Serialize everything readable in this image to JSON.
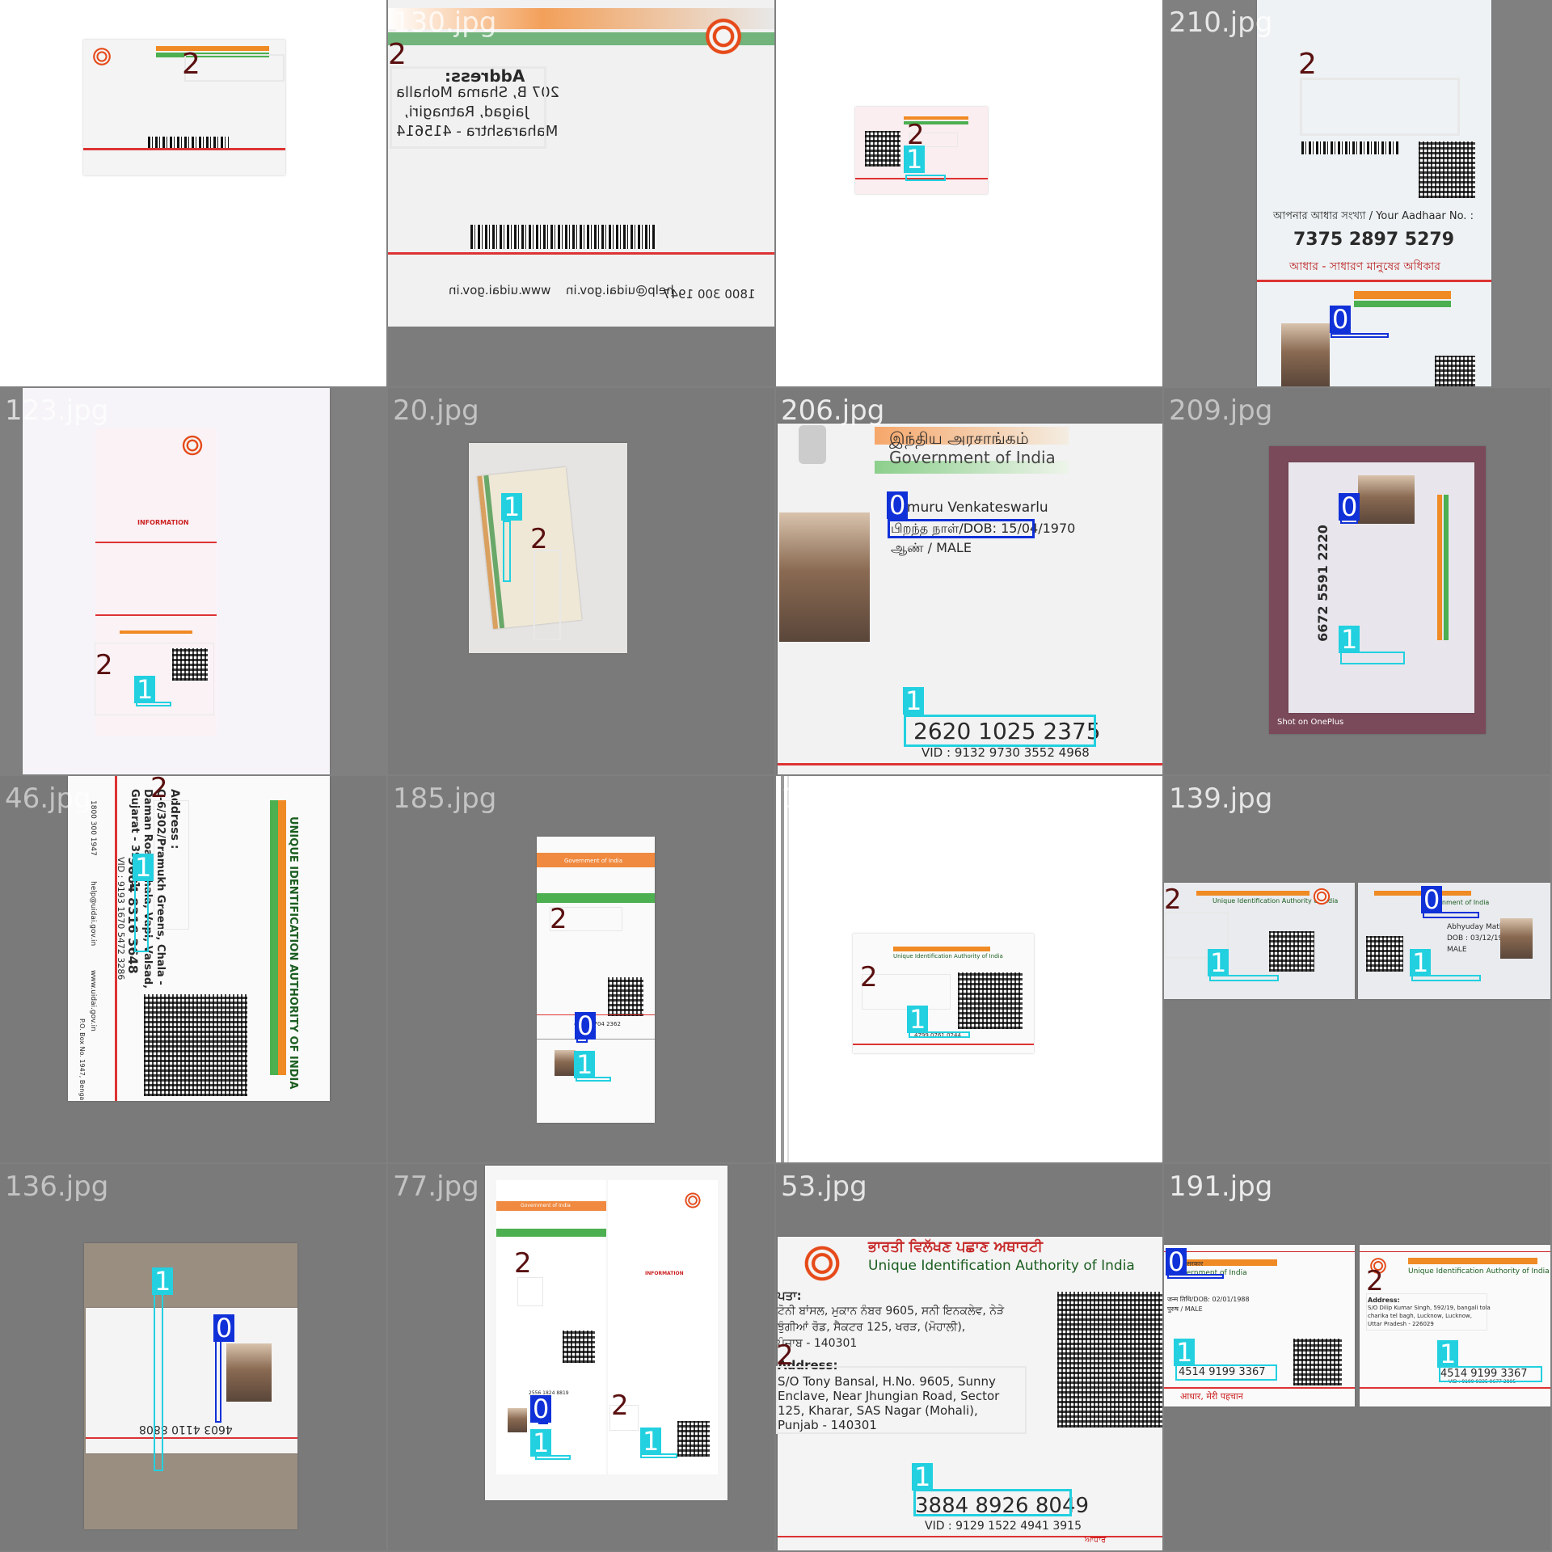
{
  "colors": {
    "class_0": "#1030d8",
    "class_1": "#22d0e0",
    "class_2": "#e8e8e8",
    "label_2_text": "#5a1010",
    "tile_background": "#7a7a7a"
  },
  "tiles": [
    {
      "file": "13.jpg",
      "detections": [
        {
          "cls": "2"
        }
      ]
    },
    {
      "file": "130.jpg",
      "detections": [
        {
          "cls": "2"
        }
      ],
      "card_text": [
        "Address:",
        "207 B, Shama Mohalla",
        "Jaigad, Ratnagiri,",
        "Maharashtra - 415614",
        "1800 300 1947",
        "help@uidai.gov.in",
        "www.uidai.gov.in"
      ]
    },
    {
      "file": "24.jpg",
      "detections": [
        {
          "cls": "2"
        },
        {
          "cls": "1"
        }
      ]
    },
    {
      "file": "210.jpg",
      "detections": [
        {
          "cls": "2"
        },
        {
          "cls": "0"
        }
      ],
      "card_text": [
        "আপনার আধার সংখ্যা / Your Aadhaar No. :",
        "7375 2897 5279",
        "আধার - সাধারণ মানুষের অধিকার"
      ]
    },
    {
      "file": "123.jpg",
      "detections": [
        {
          "cls": "2"
        },
        {
          "cls": "1"
        }
      ],
      "card_text": [
        "INFORMATION"
      ]
    },
    {
      "file": "20.jpg",
      "detections": [
        {
          "cls": "1"
        },
        {
          "cls": "2"
        }
      ]
    },
    {
      "file": "206.jpg",
      "detections": [
        {
          "cls": "0"
        },
        {
          "cls": "1"
        }
      ],
      "card_text": [
        "இந்திய அரசாங்கம்",
        "Government of India",
        "Pamuru Venkateswarlu",
        "பிறந்த நாள்/DOB: 15/04/1970",
        "ஆண் / MALE",
        "2620 1025 2375",
        "VID : 9132 9730 3552 4968"
      ]
    },
    {
      "file": "209.jpg",
      "detections": [
        {
          "cls": "0"
        },
        {
          "cls": "1"
        }
      ],
      "card_text": [
        "6672 5591 2220",
        "Shot on OnePlus"
      ]
    },
    {
      "file": "46.jpg",
      "detections": [
        {
          "cls": "2"
        },
        {
          "cls": "1"
        }
      ],
      "card_text": [
        "Address :",
        "C-6/302/Pramukh Greens, Chala -",
        "Daman Road, Chala, Vapi, Valsad,",
        "Gujarat - 396191",
        "9084 8316 3648",
        "VID : 9193 1670 5472 3286",
        "UNIQUE IDENTIFICATION AUTHORITY OF INDIA",
        "1800 300 1947",
        "help@uidai.gov.in",
        "www.uidai.gov.in",
        "P.O. Box No. 1947, Bengaluru-560 001"
      ]
    },
    {
      "file": "185.jpg",
      "detections": [
        {
          "cls": "2"
        },
        {
          "cls": "0"
        },
        {
          "cls": "1"
        }
      ],
      "card_text": [
        "Government of India",
        "4207 9704 2362"
      ]
    },
    {
      "file": "104.jpg",
      "detections": [
        {
          "cls": "2"
        },
        {
          "cls": "1"
        }
      ],
      "card_text": [
        "Unique Identification Authority of India",
        "4799 0761 0244"
      ]
    },
    {
      "file": "139.jpg",
      "detections": [
        {
          "cls": "2"
        },
        {
          "cls": "1"
        },
        {
          "cls": "0"
        },
        {
          "cls": "1"
        }
      ],
      "card_text": [
        "Unique Identification Authority of India",
        "Government of India",
        "Abhyuday Mathur",
        "DOB : 03/12/1990",
        "MALE"
      ]
    },
    {
      "file": "136.jpg",
      "detections": [
        {
          "cls": "1"
        },
        {
          "cls": "0"
        }
      ],
      "card_text": [
        "4603 4110 8808"
      ]
    },
    {
      "file": "77.jpg",
      "detections": [
        {
          "cls": "2"
        },
        {
          "cls": "0"
        },
        {
          "cls": "1"
        },
        {
          "cls": "2"
        },
        {
          "cls": "1"
        }
      ],
      "card_text": [
        "Government of India",
        "INFORMATION",
        "2556 1824 8819"
      ]
    },
    {
      "file": "53.jpg",
      "detections": [
        {
          "cls": "2"
        },
        {
          "cls": "1"
        }
      ],
      "card_text": [
        "ਭਾਰਤੀ ਵਿਲੱਖਣ ਪਛਾਣ ਅਥਾਰਟੀ",
        "Unique Identification Authority of India",
        "ਪਤਾ:",
        "ਟੋਨੀ ਬਾਂਸਲ, ਮੁਕਾਨ ਨੰਬਰ 9605, ਸਨੀ ਇਨਕਲੇਵ, ਨੇੜੇ",
        "ਝੁੰਗੀਆਂ ਰੋਡ, ਸੈਕਟਰ 125, ਖਰੜ, (ਮੋਹਾਲੀ),",
        "ਪੰਜਾਬ - 140301",
        "Address:",
        "S/O Tony Bansal, H.No. 9605, Sunny",
        "Enclave, Near Jhungian Road, Sector",
        "125, Kharar, SAS Nagar (Mohali),",
        "Punjab - 140301",
        "3884 8926 8049",
        "VID : 9129 1522 4941 3915",
        "ਆਧਾਰ"
      ]
    },
    {
      "file": "191.jpg",
      "detections": [
        {
          "cls": "0"
        },
        {
          "cls": "2"
        },
        {
          "cls": "1"
        },
        {
          "cls": "1"
        }
      ],
      "card_text": [
        "भारत सरकार",
        "Government of India",
        "जन्म तिथि/DOB: 02/01/1988",
        "पुरुष / MALE",
        "Unique Identification Authority of India",
        "Address:",
        "S/O Dilip Kumar Singh, 592/19, bangali tola",
        "charika tel bagh, Lucknow, Lucknow,",
        "Uttar Pradesh - 226029",
        "4514 9199 3367",
        "4514 9199 3367",
        "VID : 9199 9335 9677 2895",
        "आधार, मेरी पहचान"
      ]
    }
  ]
}
